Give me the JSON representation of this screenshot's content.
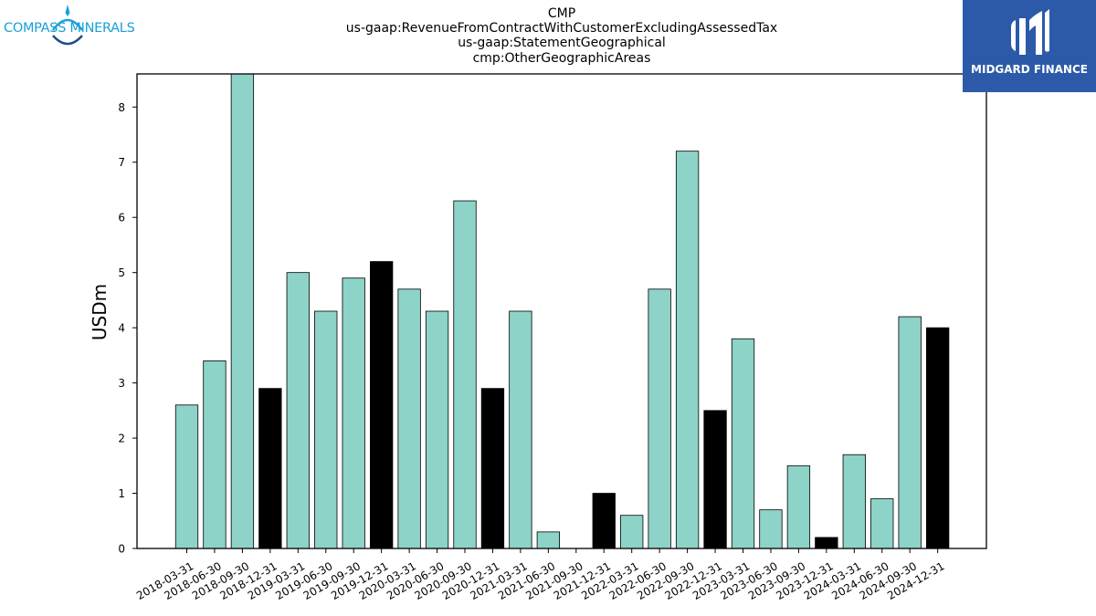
{
  "header": {
    "title_lines": [
      "CMP",
      "us-gaap:RevenueFromContractWithCustomerExcludingAssessedTax",
      "us-gaap:StatementGeographical",
      "cmp:OtherGeographicAreas"
    ]
  },
  "logos": {
    "left": {
      "text": "COMPASS MINERALS",
      "color": "#1aa0d8",
      "icon": "compass-star-icon"
    },
    "right": {
      "text": "MIDGARD FINANCE",
      "background": "#2c5aa8",
      "icon": "midgard-m-icon"
    }
  },
  "chart_data": {
    "type": "bar",
    "ylabel": "USDm",
    "xlabel": "",
    "ylim": [
      0,
      8.6
    ],
    "yticks": [
      0,
      1,
      2,
      3,
      4,
      5,
      6,
      7,
      8
    ],
    "grid": false,
    "colors": {
      "quarter": "#8dd3c7",
      "year_end": "#000000",
      "edge": "#000000"
    },
    "categories": [
      "2018-03-31",
      "2018-06-30",
      "2018-09-30",
      "2018-12-31",
      "2019-03-31",
      "2019-06-30",
      "2019-09-30",
      "2019-12-31",
      "2020-03-31",
      "2020-06-30",
      "2020-09-30",
      "2020-12-31",
      "2021-03-31",
      "2021-06-30",
      "2021-09-30",
      "2021-12-31",
      "2022-03-31",
      "2022-06-30",
      "2022-09-30",
      "2022-12-31",
      "2023-03-31",
      "2023-06-30",
      "2023-09-30",
      "2023-12-31",
      "2024-03-31",
      "2024-06-30",
      "2024-09-30",
      "2024-12-31"
    ],
    "values": [
      2.6,
      3.4,
      8.6,
      2.9,
      5.0,
      4.3,
      4.9,
      5.2,
      4.7,
      4.3,
      6.3,
      2.9,
      4.3,
      0.3,
      0,
      1.0,
      0.6,
      4.7,
      7.2,
      2.5,
      3.8,
      0.7,
      1.5,
      0.2,
      1.7,
      0.9,
      4.2,
      4.0
    ]
  }
}
